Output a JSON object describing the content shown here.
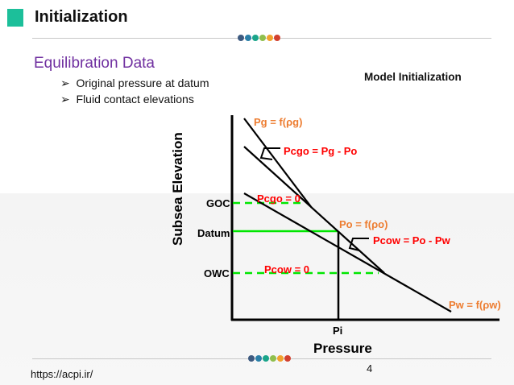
{
  "header": {
    "title": "Initialization",
    "accent_color": "#1cbf9a",
    "dot_colors": [
      "#3d5a80",
      "#2a7fa8",
      "#1aa58a",
      "#8fbf4d",
      "#f2a22e",
      "#d2402f"
    ]
  },
  "content": {
    "subtitle": "Equilibration Data",
    "bullets": [
      "Original pressure at datum",
      "Fluid contact elevations"
    ],
    "bullet_icon": "arrowhead-bullet",
    "figure_title": "Model Initialization"
  },
  "diagram": {
    "y_axis_label": "Subsea Elevation",
    "x_axis_label": "Pressure",
    "x_tick": "Pi",
    "levels": {
      "goc": "GOC",
      "datum": "Datum",
      "owc": "OWC"
    },
    "gas_eq": "Pg = f(ρg)",
    "oil_eq": "Po = f(ρo)",
    "water_eq": "Pw = f(ρw)",
    "pcgo_eq": "Pcgo = Pg - Po",
    "pcow_eq": "Pcow = Po - Pw",
    "pcgo_zero": "Pcgo = 0",
    "pcow_zero": "Pcow = 0",
    "colors": {
      "contact_lines": "#00e600",
      "equations": "#ff0000",
      "phase_labels": "#ed7d31"
    }
  },
  "footer": {
    "url": "https://acpi.ir/",
    "page_number": "4"
  }
}
